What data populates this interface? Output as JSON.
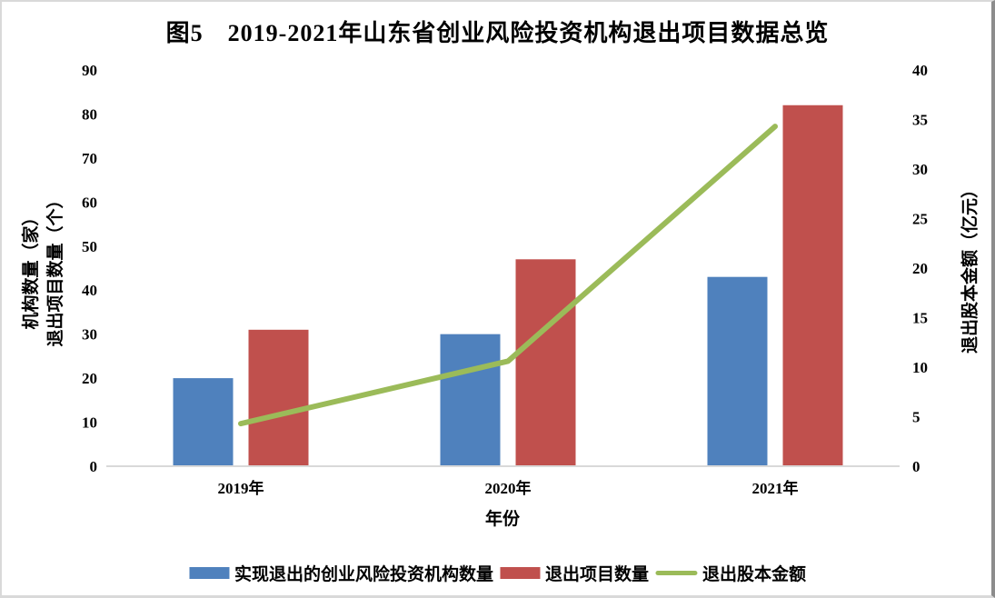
{
  "title": "图5　2019-2021年山东省创业风险投资机构退出项目数据总览",
  "chart_data": {
    "type": "bar",
    "subtype": "combo-bar-line-dual-axis",
    "title": "图5　2019-2021年山东省创业风险投资机构退出项目数据总览",
    "categories": [
      "2019年",
      "2020年",
      "2021年"
    ],
    "series": [
      {
        "name": "实现退出的创业风险投资机构数量",
        "type": "bar",
        "axis": "left",
        "color": "#4F81BD",
        "values": [
          20,
          30,
          43
        ]
      },
      {
        "name": "退出项目数量",
        "type": "bar",
        "axis": "left",
        "color": "#C0504D",
        "values": [
          31,
          47,
          82
        ]
      },
      {
        "name": "退出股本金额",
        "type": "line",
        "axis": "right",
        "color": "#9BBB59",
        "values": [
          4.3,
          10.6,
          34.3
        ]
      }
    ],
    "xlabel": "年份",
    "axes": {
      "left": {
        "title_lines": [
          "机构数量（家）",
          "退出项目数量（个）"
        ],
        "min": 0,
        "max": 90,
        "step": 10,
        "ticks": [
          0,
          10,
          20,
          30,
          40,
          50,
          60,
          70,
          80,
          90
        ]
      },
      "right": {
        "title": "退出股本金额（亿元）",
        "min": 0,
        "max": 40,
        "step": 5,
        "ticks": [
          0,
          5,
          10,
          15,
          20,
          25,
          30,
          35,
          40
        ]
      }
    },
    "grid": false,
    "legend_position": "bottom",
    "axis_line_color": "#D9D9D9",
    "text_color": "#000000"
  }
}
